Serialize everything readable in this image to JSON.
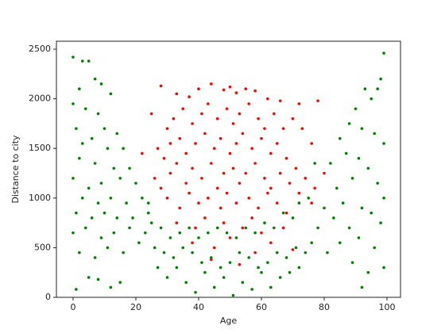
{
  "chart_data": {
    "type": "scatter",
    "xlabel": "Age",
    "ylabel": "Distance to city",
    "xlim": [
      -5.3,
      104.3
    ],
    "ylim": [
      0,
      2580
    ],
    "xticks": [
      0,
      20,
      40,
      60,
      80,
      100
    ],
    "yticks": [
      0,
      500,
      1000,
      1500,
      2000,
      2500
    ],
    "series": [
      {
        "color": "#ff0000",
        "x": [
          28,
          33,
          37,
          40,
          44,
          48,
          50,
          52,
          55,
          58,
          62,
          66,
          72,
          78,
          25,
          30,
          32,
          35,
          38,
          41,
          43,
          46,
          49,
          51,
          53,
          56,
          59,
          61,
          64,
          67,
          70,
          73,
          76,
          27,
          29,
          31,
          34,
          36,
          39,
          42,
          45,
          47,
          50,
          52,
          54,
          57,
          60,
          63,
          65,
          68,
          71,
          74,
          26,
          28,
          31,
          33,
          36,
          38,
          41,
          44,
          46,
          48,
          51,
          53,
          55,
          58,
          61,
          63,
          66,
          69,
          72,
          77,
          30,
          34,
          37,
          40,
          43,
          47,
          49,
          52,
          56,
          59,
          62,
          65,
          68,
          33,
          39,
          42,
          48,
          54,
          57,
          60,
          67,
          38,
          45,
          50,
          58,
          63,
          70,
          44,
          53,
          76,
          22,
          80
        ],
        "values": [
          2130,
          2050,
          2020,
          2100,
          2150,
          2090,
          2120,
          2060,
          2100,
          2080,
          2000,
          1980,
          1950,
          1980,
          1850,
          1700,
          1800,
          1900,
          1750,
          1850,
          1950,
          1800,
          1900,
          1750,
          1850,
          1950,
          1800,
          1700,
          1850,
          1700,
          1800,
          1700,
          1550,
          1500,
          1400,
          1550,
          1600,
          1450,
          1550,
          1650,
          1500,
          1600,
          1450,
          1550,
          1650,
          1500,
          1600,
          1450,
          1550,
          1400,
          1300,
          1200,
          1200,
          1100,
          1250,
          1350,
          1150,
          1300,
          1200,
          1350,
          1100,
          1250,
          1300,
          1150,
          1250,
          1350,
          1200,
          1100,
          1250,
          1150,
          1050,
          1100,
          1000,
          900,
          1050,
          950,
          1000,
          900,
          1050,
          950,
          1000,
          900,
          1050,
          950,
          850,
          750,
          700,
          800,
          750,
          700,
          800,
          650,
          700,
          550,
          500,
          600,
          450,
          550,
          480,
          380,
          330,
          950,
          1450,
          1250
        ]
      },
      {
        "color": "#008000",
        "x": [
          0,
          3,
          5,
          7,
          9,
          2,
          12,
          0,
          4,
          8,
          10,
          1,
          6,
          14,
          3,
          11,
          16,
          2,
          7,
          13,
          18,
          0,
          5,
          9,
          15,
          20,
          3,
          8,
          12,
          17,
          22,
          1,
          6,
          10,
          14,
          19,
          24,
          0,
          4,
          9,
          13,
          18,
          23,
          2,
          7,
          11,
          16,
          21,
          5,
          8,
          1,
          12,
          15,
          99,
          98,
          97,
          93,
          95,
          90,
          88,
          92,
          96,
          85,
          99,
          87,
          91,
          94,
          82,
          89,
          97,
          84,
          99,
          86,
          92,
          80,
          95,
          83,
          88,
          98,
          78,
          91,
          85,
          96,
          81,
          89,
          94,
          99,
          92,
          77,
          75,
          72,
          70,
          67,
          64,
          61,
          58,
          55,
          52,
          49,
          46,
          43,
          40,
          37,
          34,
          31,
          28,
          25,
          26,
          29,
          32,
          35,
          38,
          41,
          44,
          47,
          50,
          53,
          56,
          59,
          62,
          65,
          68,
          71,
          74,
          30,
          36,
          42,
          48,
          54,
          60,
          66,
          72,
          39,
          51,
          57,
          63,
          45,
          33,
          69,
          27,
          76,
          24
        ],
        "values": [
          2420,
          2380,
          2380,
          2200,
          2150,
          2100,
          2050,
          1950,
          1900,
          1850,
          1700,
          1700,
          1600,
          1650,
          1550,
          1500,
          1500,
          1400,
          1350,
          1300,
          1300,
          1200,
          1100,
          1150,
          1200,
          1150,
          1000,
          950,
          1000,
          950,
          1000,
          850,
          800,
          850,
          800,
          800,
          850,
          650,
          700,
          600,
          650,
          700,
          650,
          450,
          400,
          500,
          450,
          550,
          200,
          180,
          80,
          100,
          150,
          2460,
          2200,
          2100,
          2100,
          2000,
          1900,
          1750,
          1700,
          1650,
          1600,
          1550,
          1450,
          1400,
          1300,
          1350,
          1200,
          1150,
          1100,
          1000,
          950,
          900,
          900,
          850,
          800,
          700,
          750,
          700,
          600,
          550,
          500,
          450,
          350,
          250,
          300,
          100,
          1350,
          1000,
          950,
          800,
          850,
          700,
          750,
          650,
          700,
          600,
          650,
          700,
          650,
          600,
          700,
          650,
          600,
          700,
          750,
          500,
          450,
          400,
          500,
          450,
          350,
          400,
          300,
          350,
          450,
          400,
          300,
          350,
          450,
          400,
          500,
          450,
          200,
          150,
          250,
          200,
          150,
          250,
          200,
          300,
          50,
          20,
          80,
          100,
          100,
          300,
          250,
          300,
          550,
          950
        ]
      }
    ]
  }
}
